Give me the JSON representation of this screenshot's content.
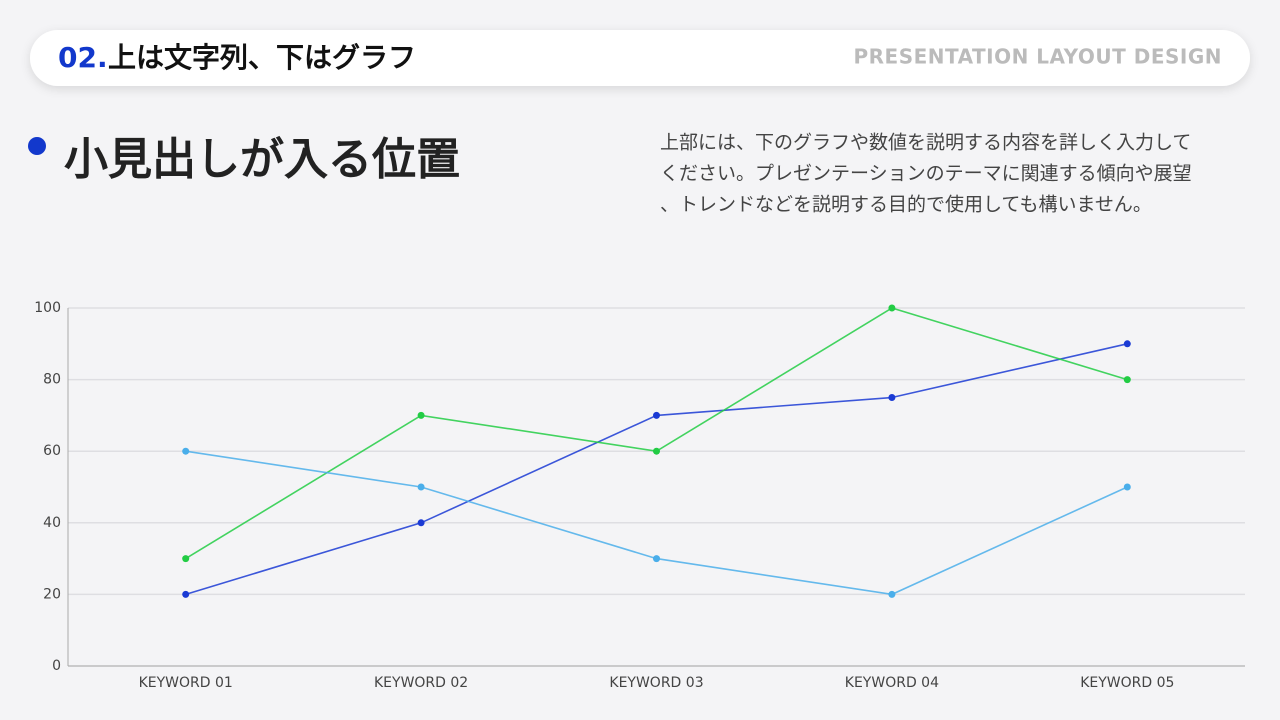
{
  "header": {
    "number": "02.",
    "title": "上は文字列、下はグラフ",
    "tag": "PRESENTATION LAYOUT DESIGN"
  },
  "heading": "小見出しが入る位置",
  "description": [
    "上部には、下のグラフや数値を説明する内容を詳しく入力して",
    "ください。プレゼンテーションのテーマに関連する傾向や展望",
    "、トレンドなどを説明する目的で使用しても構いません。"
  ],
  "chart_data": {
    "type": "line",
    "categories": [
      "KEYWORD 01",
      "KEYWORD 02",
      "KEYWORD 03",
      "KEYWORD 04",
      "KEYWORD 05"
    ],
    "series": [
      {
        "color": "#1a3ad4",
        "values": [
          20,
          40,
          70,
          75,
          90
        ]
      },
      {
        "color": "#22cc44",
        "values": [
          30,
          70,
          60,
          100,
          80
        ]
      },
      {
        "color": "#4aaeea",
        "values": [
          60,
          50,
          30,
          20,
          50
        ]
      }
    ],
    "ylim": [
      0,
      100
    ],
    "yticks": [
      0,
      20,
      40,
      60,
      80,
      100
    ],
    "grid": true
  }
}
